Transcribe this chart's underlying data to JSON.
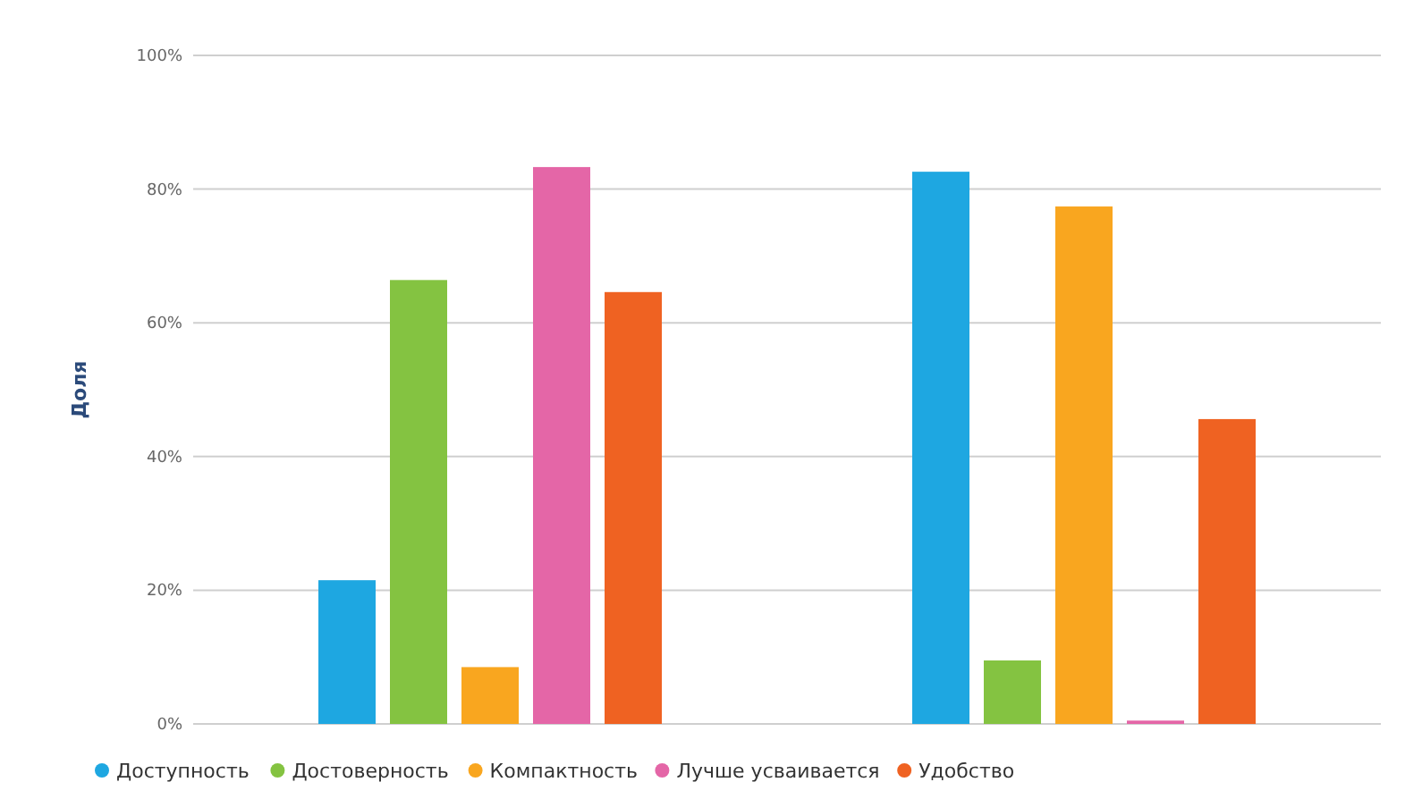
{
  "chart_data": {
    "type": "bar",
    "ylabel": "Доля",
    "categories": [
      null,
      null
    ],
    "series": [
      {
        "name": "Доступность",
        "color": "#1ea7e1",
        "values": [
          21.5,
          82.6
        ]
      },
      {
        "name": "Достоверность",
        "color": "#84c341",
        "values": [
          66.4,
          9.5
        ]
      },
      {
        "name": "Компактность",
        "color": "#f9a61f",
        "values": [
          8.5,
          77.4
        ]
      },
      {
        "name": "Лучше усваивается",
        "color": "#e466a7",
        "values": [
          83.3,
          0.5
        ]
      },
      {
        "name": "Удобство",
        "color": "#ef6222",
        "values": [
          64.6,
          45.6
        ]
      }
    ],
    "ylim": [
      0,
      100
    ],
    "yticks": [
      {
        "value": 0,
        "label": "0%"
      },
      {
        "value": 20,
        "label": "20%"
      },
      {
        "value": 40,
        "label": "40%"
      },
      {
        "value": 60,
        "label": "60%"
      },
      {
        "value": 80,
        "label": "80%"
      },
      {
        "value": 100,
        "label": "100%"
      }
    ],
    "grid": "y",
    "legend": "bottom left"
  }
}
